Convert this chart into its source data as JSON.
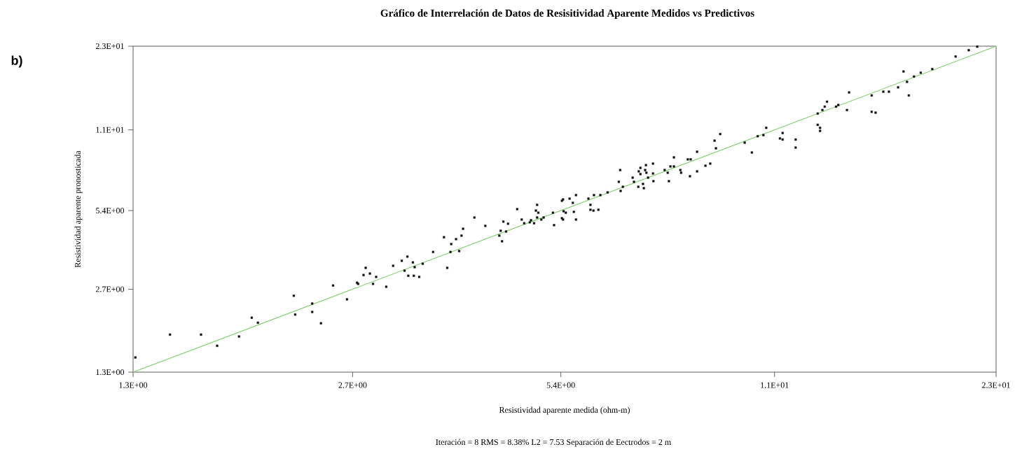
{
  "chart_data": {
    "type": "scatter",
    "title": "Gráfico de Interrelación de Datos de Resisitividad Aparente Medidos vs Predictivos",
    "xlabel": "Resistividad aparente medida (ohm-m)",
    "ylabel": "Resistividad aparente pronosticada",
    "annotations": [
      "b)",
      "Iteración = 8    RMS = 8.38%    L2 = 7.53     Separación de Eectrodos = 2 m"
    ],
    "log": "xy",
    "xlim": [
      1.3,
      23
    ],
    "ylim": [
      1.3,
      23
    ],
    "xticks": [
      {
        "value": 1.3,
        "label": "1.3E+00"
      },
      {
        "value": 2.7,
        "label": "2.7E+00"
      },
      {
        "value": 5.4,
        "label": "5.4E+00"
      },
      {
        "value": 11,
        "label": "1.1E+01"
      },
      {
        "value": 23,
        "label": "2.3E+01"
      }
    ],
    "yticks": [
      {
        "value": 1.3,
        "label": "1.3E+00"
      },
      {
        "value": 2.7,
        "label": "2.7E+00"
      },
      {
        "value": 5.4,
        "label": "5.4E+00"
      },
      {
        "value": 11,
        "label": "1.1E+01"
      },
      {
        "value": 23,
        "label": "2.3E+01"
      }
    ],
    "series": [
      {
        "marker": "square",
        "color": "#111111",
        "x": [
          1.31,
          1.47,
          1.63,
          1.72,
          1.85,
          1.93,
          1.97,
          2.22,
          2.23,
          2.36,
          2.36,
          2.43,
          2.53,
          2.65,
          2.74,
          2.75,
          2.82,
          2.8,
          2.86,
          2.92,
          2.89,
          3.02,
          3.09,
          3.18,
          3.24,
          3.21,
          3.25,
          3.3,
          3.32,
          3.31,
          3.37,
          3.41,
          3.53,
          3.66,
          3.75,
          3.74,
          3.81,
          3.85,
          3.88,
          3.9,
          3.7,
          4.05,
          4.2,
          4.4,
          4.42,
          4.46,
          4.53,
          4.5,
          4.44,
          4.67,
          4.74,
          4.78,
          4.87,
          4.89,
          4.94,
          4.99,
          4.97,
          5.01,
          4.99,
          5.06,
          5.1,
          5.26,
          5.28,
          5.42,
          5.44,
          5.56,
          5.45,
          5.49,
          5.42,
          5.44,
          5.64,
          5.68,
          5.62,
          5.68,
          5.92,
          6.03,
          6.16,
          5.96,
          5.96,
          6.02,
          6.12,
          6.31,
          6.55,
          6.58,
          6.59,
          6.64,
          6.86,
          6.89,
          7.0,
          7.04,
          7.04,
          6.99,
          7.1,
          7.12,
          7.15,
          7.17,
          7.18,
          7.22,
          7.34,
          7.34,
          7.35,
          7.63,
          7.71,
          7.74,
          7.78,
          7.87,
          7.87,
          8.04,
          8.06,
          8.24,
          8.32,
          8.3,
          8.5,
          8.5,
          8.74,
          8.88,
          9.01,
          9.05,
          9.18,
          9.96,
          10.2,
          10.4,
          10.6,
          10.7,
          11.2,
          11.3,
          11.3,
          11.8,
          11.8,
          12.7,
          12.8,
          12.8,
          12.7,
          12.9,
          13.0,
          13.1,
          13.5,
          13.6,
          14.0,
          14.1,
          15.2,
          15.2,
          15.4,
          15.8,
          16.1,
          16.6,
          16.9,
          17.1,
          17.2,
          17.5,
          17.9,
          18.6,
          20.1,
          21.0,
          21.6
        ],
        "values": [
          1.48,
          1.81,
          1.81,
          1.64,
          1.78,
          2.1,
          2.01,
          2.55,
          2.16,
          2.38,
          2.21,
          2.0,
          2.79,
          2.47,
          2.86,
          2.83,
          3.26,
          3.06,
          3.1,
          3.01,
          2.83,
          2.76,
          3.32,
          3.47,
          3.6,
          3.18,
          3.04,
          3.42,
          3.28,
          3.04,
          3.01,
          3.38,
          3.75,
          4.27,
          4.02,
          3.75,
          4.2,
          3.78,
          4.33,
          4.6,
          3.26,
          5.08,
          4.72,
          4.33,
          4.52,
          4.9,
          4.81,
          4.49,
          4.12,
          5.47,
          4.99,
          4.83,
          4.87,
          4.96,
          4.83,
          5.68,
          5.4,
          5.3,
          5.08,
          4.99,
          5.08,
          5.3,
          4.75,
          5.89,
          5.96,
          6.0,
          5.37,
          5.3,
          5.05,
          4.99,
          5.34,
          6.19,
          5.78,
          4.99,
          6.0,
          6.19,
          6.19,
          5.68,
          5.44,
          5.4,
          5.44,
          6.34,
          6.96,
          7.72,
          6.42,
          6.66,
          7.22,
          6.96,
          7.63,
          7.87,
          7.45,
          6.66,
          6.83,
          6.58,
          7.72,
          8.06,
          7.54,
          7.22,
          8.17,
          7.49,
          7.0,
          7.72,
          7.54,
          7.0,
          7.97,
          7.97,
          8.63,
          7.72,
          7.54,
          8.48,
          8.48,
          7.31,
          7.63,
          9.07,
          8.02,
          8.17,
          10.0,
          9.35,
          10.6,
          9.83,
          9.01,
          10.4,
          10.5,
          11.2,
          10.2,
          10.1,
          10.7,
          9.41,
          10.1,
          11.5,
          11.2,
          10.9,
          12.7,
          13.1,
          13.5,
          14.1,
          13.5,
          13.7,
          13.1,
          15.3,
          14.9,
          12.9,
          12.8,
          15.4,
          15.4,
          16.0,
          18.4,
          16.8,
          14.9,
          17.6,
          18.2,
          18.8,
          21.0,
          22.2,
          22.9
        ]
      },
      {
        "type": "line",
        "marker": "none",
        "color": "#7dcf6b",
        "x": [
          1.3,
          23
        ],
        "values": [
          1.3,
          23
        ]
      }
    ]
  }
}
